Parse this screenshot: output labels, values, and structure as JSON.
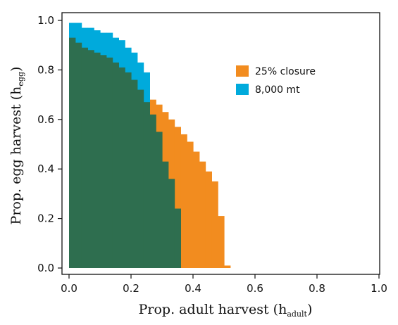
{
  "chart_data": {
    "type": "area",
    "title": "",
    "xlabel": "Prop. adult harvest (h",
    "xlabel_sub": "adult",
    "xlabel_close": ")",
    "ylabel": "Prop. egg harvest (h",
    "ylabel_sub": "egg",
    "ylabel_close": ")",
    "xlim": [
      0,
      1
    ],
    "ylim": [
      0,
      1
    ],
    "xticks": [
      "0.0",
      "0.2",
      "0.4",
      "0.6",
      "0.8",
      "1.0"
    ],
    "yticks": [
      "0.0",
      "0.2",
      "0.4",
      "0.6",
      "0.8",
      "1.0"
    ],
    "grid": false,
    "legend_position": "right-upper",
    "cell_size": [
      0.02,
      0.02
    ],
    "series": [
      {
        "name": "25% closure",
        "color": "#f28c1f",
        "x": [
          0.0,
          0.02,
          0.04,
          0.06,
          0.08,
          0.1,
          0.12,
          0.14,
          0.16,
          0.18,
          0.2,
          0.22,
          0.24,
          0.26,
          0.28,
          0.3,
          0.32,
          0.34,
          0.36,
          0.38,
          0.4,
          0.42,
          0.44,
          0.46,
          0.48,
          0.5
        ],
        "y": [
          0.93,
          0.91,
          0.89,
          0.88,
          0.87,
          0.86,
          0.85,
          0.83,
          0.81,
          0.79,
          0.76,
          0.73,
          0.7,
          0.68,
          0.66,
          0.63,
          0.6,
          0.57,
          0.54,
          0.51,
          0.47,
          0.43,
          0.39,
          0.35,
          0.21,
          0.01
        ]
      },
      {
        "name": "8,000 mt",
        "color": "#00aadc",
        "x": [
          0.0,
          0.02,
          0.04,
          0.06,
          0.08,
          0.1,
          0.12,
          0.14,
          0.16,
          0.18,
          0.2,
          0.22,
          0.24,
          0.26
        ],
        "y": [
          0.99,
          0.99,
          0.97,
          0.97,
          0.96,
          0.95,
          0.95,
          0.93,
          0.92,
          0.89,
          0.87,
          0.83,
          0.79,
          0.0
        ]
      },
      {
        "name": "",
        "color": "#2e6e4f",
        "x": [
          0.0,
          0.02,
          0.04,
          0.06,
          0.08,
          0.1,
          0.12,
          0.14,
          0.16,
          0.18,
          0.2,
          0.22,
          0.24,
          0.26,
          0.28,
          0.3,
          0.32,
          0.34,
          0.36
        ],
        "y": [
          0.93,
          0.91,
          0.89,
          0.88,
          0.87,
          0.86,
          0.85,
          0.83,
          0.81,
          0.79,
          0.76,
          0.72,
          0.67,
          0.62,
          0.55,
          0.43,
          0.36,
          0.24,
          0.0
        ]
      }
    ]
  }
}
